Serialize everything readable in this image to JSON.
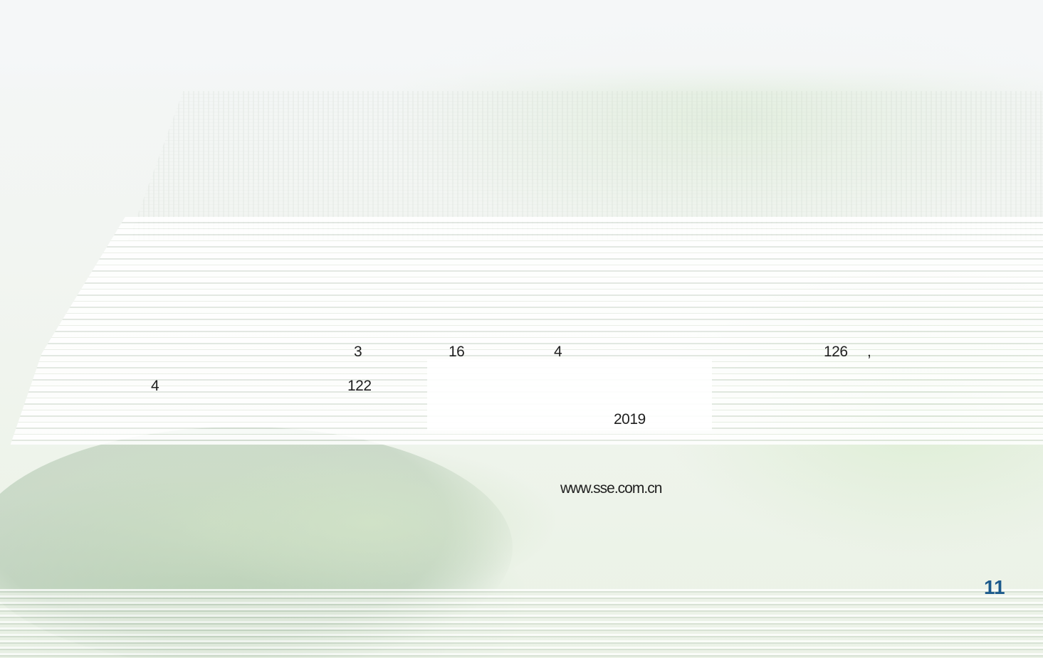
{
  "document": {
    "fragments": {
      "n3": "3",
      "n16": "16",
      "n4a": "4",
      "n126": "126",
      "comma": ",",
      "n4b": "4",
      "n122": "122",
      "year": "2019",
      "website": "www.sse.com.cn"
    },
    "page_number": "11"
  },
  "colors": {
    "text": "#1f1f1f",
    "page_number": "#1c5a8c"
  }
}
